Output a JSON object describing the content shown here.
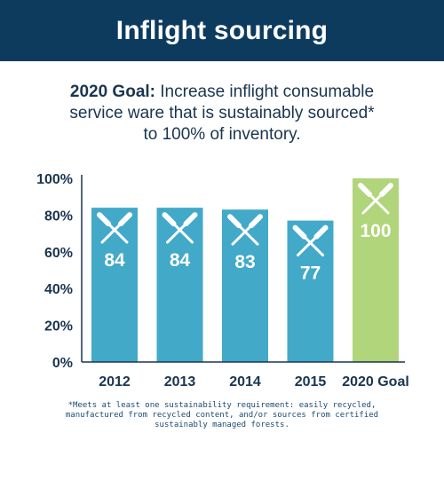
{
  "header": {
    "title": "Inflight sourcing"
  },
  "goal": {
    "label": "2020 Goal:",
    "line1_rest": "Increase inflight consumable",
    "line2": "service ware that is sustainably sourced*",
    "line3": "to 100% of inventory."
  },
  "colors": {
    "header_bg": "#0d3b5e",
    "bar": "#42a9c8",
    "goal_bar": "#b1d57a",
    "text": "#1a3550",
    "icon": "#ffffff"
  },
  "icon": "crossed-fork-knife-icon",
  "chart_data": {
    "type": "bar",
    "categories": [
      "2012",
      "2013",
      "2014",
      "2015",
      "2020 Goal"
    ],
    "values": [
      84,
      84,
      83,
      77,
      100
    ],
    "data_labels": [
      "84",
      "84",
      "83",
      "77",
      "100"
    ],
    "highlight_index": 4,
    "ylim": [
      0,
      100
    ],
    "yticks": [
      0,
      20,
      40,
      60,
      80,
      100
    ],
    "ytick_labels": [
      "0%",
      "20%",
      "40%",
      "60%",
      "80%",
      "100%"
    ],
    "title": "",
    "xlabel": "",
    "ylabel": "",
    "grid": false,
    "legend": "none"
  },
  "footnote": {
    "line1": "*Meets at least one sustainability requirement: easily recycled,",
    "line2": "manufactured from recycled content, and/or sources from certified",
    "line3": "sustainably managed forests."
  }
}
